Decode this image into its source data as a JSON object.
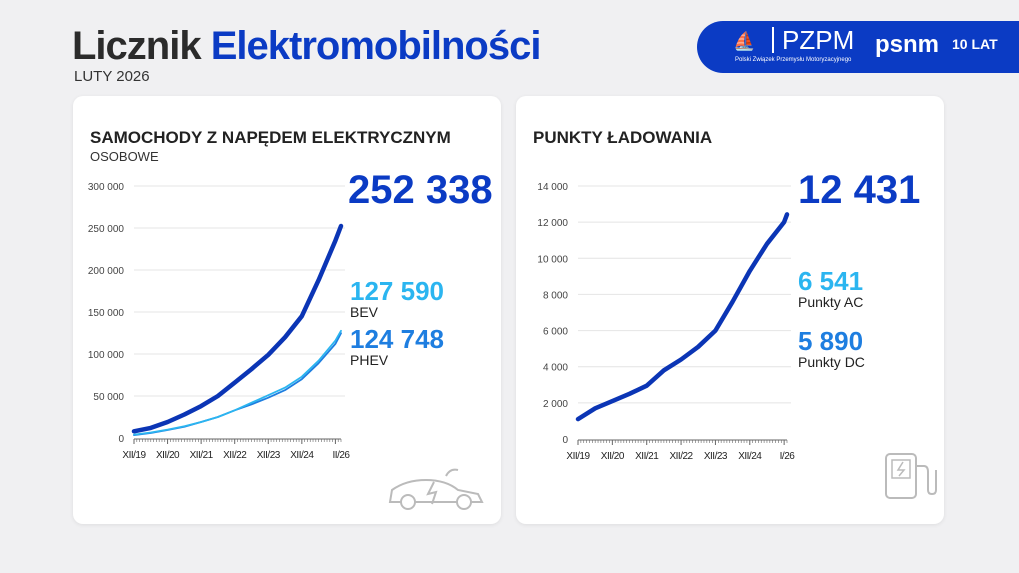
{
  "header": {
    "title_a": "Licznik",
    "title_b": "Elektromobilności",
    "date": "LUTY 2026"
  },
  "logos": {
    "pzpm": "PZPM",
    "pzpm_sub": "Polski Związek Przemysłu Motoryzacyjnego",
    "psnm": "psnm",
    "anniv": "10 LAT"
  },
  "cards": [
    {
      "title": "SAMOCHODY Z NAPĘDEM ELEKTRYCZNYM",
      "subtitle": "OSOBOWE",
      "total": "252 338",
      "items": [
        {
          "value": "127 590",
          "label": "BEV",
          "color": "#2bb5f0"
        },
        {
          "value": "124 748",
          "label": "PHEV",
          "color": "#1e7ee0"
        }
      ],
      "icon": "electric-car-icon"
    },
    {
      "title": "PUNKTY ŁADOWANIA",
      "total": "12 431",
      "items": [
        {
          "value": "6 541",
          "label": "Punkty AC",
          "color": "#2bb5f0"
        },
        {
          "value": "5 890",
          "label": "Punkty DC",
          "color": "#1e7ee0"
        }
      ],
      "icon": "charging-station-icon"
    }
  ],
  "chart_data": [
    {
      "type": "line",
      "ylim": [
        0,
        300000
      ],
      "yticks": [
        "0",
        "50 000",
        "100 000",
        "150 000",
        "200 000",
        "250 000",
        "300 000"
      ],
      "ytick_values": [
        0,
        50000,
        100000,
        150000,
        200000,
        250000,
        300000
      ],
      "xticks": [
        "XII/19",
        "XII/20",
        "XII/21",
        "XII/22",
        "XII/23",
        "XII/24",
        "II/26"
      ],
      "grid": true,
      "x": [
        "2019-12",
        "2020-06",
        "2020-12",
        "2021-06",
        "2021-12",
        "2022-06",
        "2022-12",
        "2023-06",
        "2023-12",
        "2024-06",
        "2024-12",
        "2025-06",
        "2025-12",
        "2026-02"
      ],
      "series": [
        {
          "key": "total",
          "color": "#0b35b5",
          "values": [
            8000,
            12000,
            19000,
            28000,
            38000,
            50000,
            66000,
            82000,
            99000,
            120000,
            145000,
            188000,
            235000,
            252338
          ]
        },
        {
          "key": "BEV",
          "color": "#2bb5f0",
          "values": [
            4000,
            6500,
            10000,
            14000,
            19000,
            25000,
            33000,
            42000,
            51000,
            60000,
            73000,
            92000,
            116000,
            127590
          ]
        },
        {
          "key": "PHEV",
          "color": "#1e7ee0",
          "values": [
            3500,
            6000,
            9500,
            13500,
            19000,
            25000,
            33000,
            40000,
            48000,
            57000,
            70000,
            89000,
            112000,
            124748
          ]
        }
      ]
    },
    {
      "type": "line",
      "ylim": [
        0,
        14000
      ],
      "yticks": [
        "0",
        "2 000",
        "4 000",
        "6 000",
        "8 000",
        "10 000",
        "12 000",
        "14 000"
      ],
      "ytick_values": [
        0,
        2000,
        4000,
        6000,
        8000,
        10000,
        12000,
        14000
      ],
      "xticks": [
        "XII/19",
        "XII/20",
        "XII/21",
        "XII/22",
        "XII/23",
        "XII/24",
        "I/26"
      ],
      "grid": true,
      "x": [
        "2019-12",
        "2020-06",
        "2020-12",
        "2021-06",
        "2021-12",
        "2022-06",
        "2022-12",
        "2023-06",
        "2023-12",
        "2024-06",
        "2024-12",
        "2025-06",
        "2025-12",
        "2026-01"
      ],
      "series": [
        {
          "key": "total",
          "color": "#0b35b5",
          "values": [
            1100,
            1700,
            2100,
            2500,
            2950,
            3800,
            4400,
            5100,
            6000,
            7600,
            9300,
            10800,
            12000,
            12431
          ]
        }
      ]
    }
  ]
}
